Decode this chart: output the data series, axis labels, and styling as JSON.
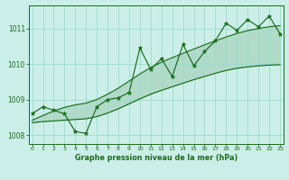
{
  "xlabel": "Graphe pression niveau de la mer (hPa)",
  "bg_color": "#cceee8",
  "grid_color": "#99ddcc",
  "line_color": "#1a6b1a",
  "hours": [
    0,
    1,
    2,
    3,
    4,
    5,
    6,
    7,
    8,
    9,
    10,
    11,
    12,
    13,
    14,
    15,
    16,
    17,
    18,
    19,
    20,
    21,
    22,
    23
  ],
  "pressure": [
    1008.6,
    1008.8,
    1008.7,
    1008.6,
    1008.1,
    1008.05,
    1008.8,
    1009.0,
    1009.05,
    1009.2,
    1010.45,
    1009.85,
    1010.15,
    1009.65,
    1010.55,
    1009.95,
    1010.35,
    1010.65,
    1011.15,
    1010.95,
    1011.25,
    1011.05,
    1011.35,
    1010.85
  ],
  "lower_line": [
    1008.35,
    1008.38,
    1008.4,
    1008.42,
    1008.44,
    1008.46,
    1008.52,
    1008.62,
    1008.74,
    1008.88,
    1009.02,
    1009.15,
    1009.26,
    1009.36,
    1009.46,
    1009.56,
    1009.65,
    1009.74,
    1009.82,
    1009.88,
    1009.92,
    1009.95,
    1009.97,
    1009.98
  ],
  "upper_line": [
    1008.42,
    1008.55,
    1008.68,
    1008.78,
    1008.85,
    1008.9,
    1009.0,
    1009.15,
    1009.32,
    1009.52,
    1009.72,
    1009.9,
    1010.05,
    1010.18,
    1010.3,
    1010.42,
    1010.54,
    1010.65,
    1010.76,
    1010.86,
    1010.94,
    1011.0,
    1011.05,
    1011.08
  ],
  "ylim": [
    1007.75,
    1011.65
  ],
  "yticks": [
    1008,
    1009,
    1010,
    1011
  ],
  "xticks": [
    0,
    1,
    2,
    3,
    4,
    5,
    6,
    7,
    8,
    9,
    10,
    11,
    12,
    13,
    14,
    15,
    16,
    17,
    18,
    19,
    20,
    21,
    22,
    23
  ]
}
